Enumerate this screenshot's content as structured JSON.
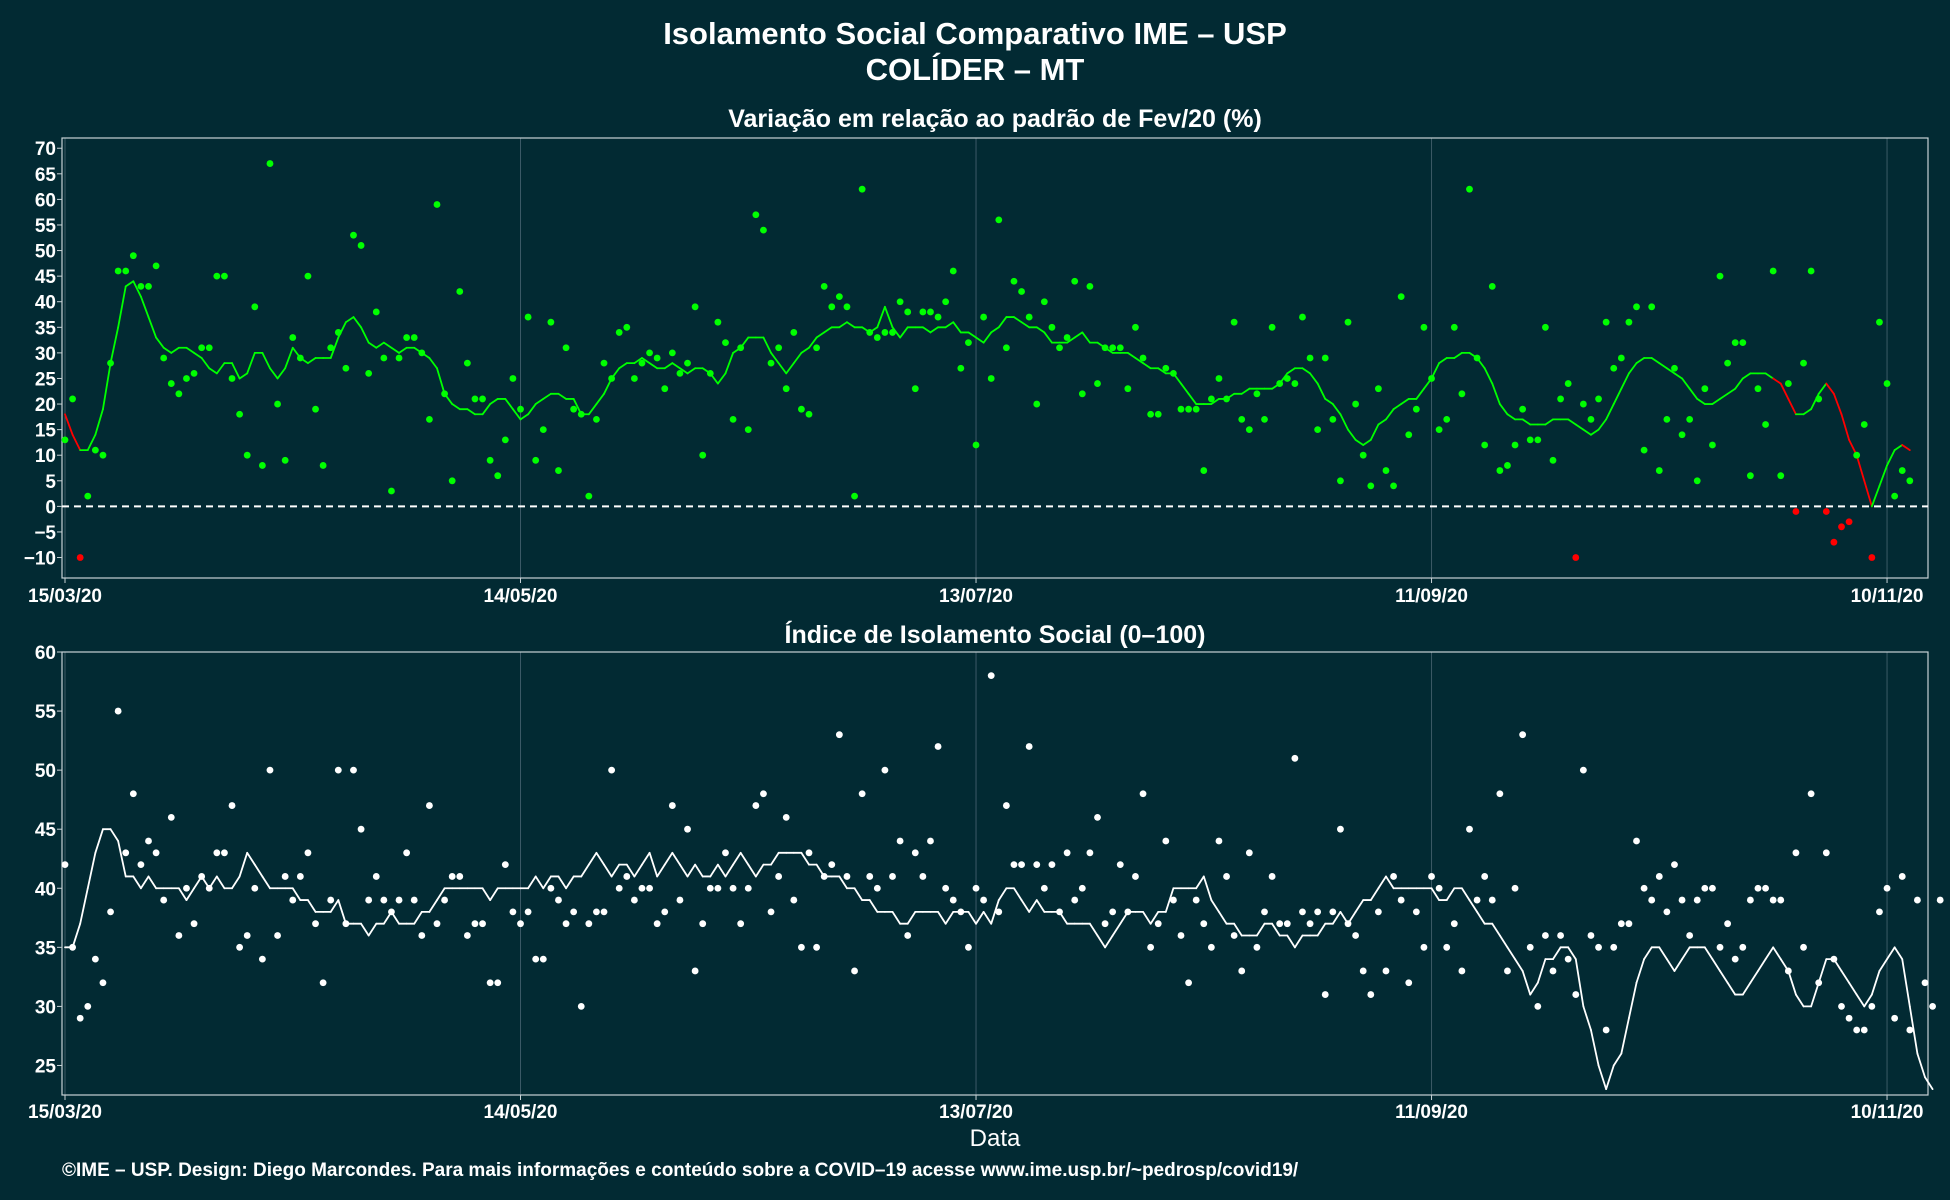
{
  "title": "Isolamento Social Comparativo IME – USP",
  "subtitle": "COLÍDER – MT",
  "footer": "©IME – USP. Design: Diego Marcondes. Para mais informações e conteúdo sobre a COVID–19 acesse www.ime.usp.br/~pedrosp/covid19/",
  "colors": {
    "background": "#022a33",
    "positive": "#00ff00",
    "negative": "#ff0000",
    "index": "#ffffff",
    "grid": "#3c5a66",
    "axis": "#c8d2d6",
    "zero_line": "#ffffff"
  },
  "chart_data": [
    {
      "type": "scatter",
      "title": "Variação em relação ao padrão de Fev/20 (%)",
      "xlabel": "",
      "ylabel": "",
      "x_start": "15/03/20",
      "x_end": "15/11/20",
      "x_ticks": [
        "15/03/20",
        "14/05/20",
        "13/07/20",
        "11/09/20",
        "10/11/20"
      ],
      "y_ticks": [
        -10,
        -5,
        0,
        5,
        10,
        15,
        20,
        25,
        30,
        35,
        40,
        45,
        50,
        55,
        60,
        65,
        70
      ],
      "ylim": [
        -14,
        72
      ],
      "grid": true,
      "reference_line": 0,
      "series": [
        {
          "kind": "points",
          "values": [
            13,
            21,
            -10,
            2,
            11,
            10,
            28,
            46,
            46,
            49,
            43,
            43,
            47,
            29,
            24,
            22,
            25,
            26,
            31,
            31,
            45,
            45,
            25,
            18,
            10,
            39,
            8,
            67,
            20,
            9,
            33,
            29,
            45,
            19,
            8,
            31,
            34,
            27,
            53,
            51,
            26,
            38,
            29,
            3,
            29,
            33,
            33,
            30,
            17,
            59,
            22,
            5,
            42,
            28,
            21,
            21,
            9,
            6,
            13,
            25,
            19,
            37,
            9,
            15,
            36,
            7,
            31,
            19,
            18,
            2,
            17,
            28,
            25,
            34,
            35,
            25,
            28,
            30,
            29,
            23,
            30,
            26,
            28,
            39,
            10,
            26,
            36,
            32,
            17,
            31,
            15,
            57,
            54,
            28,
            31,
            23,
            34,
            19,
            18,
            31,
            43,
            39,
            41,
            39,
            2,
            62,
            34,
            33,
            34,
            34,
            40,
            38,
            23,
            38,
            38,
            37,
            40,
            46,
            27,
            32,
            12,
            37,
            25,
            56,
            31,
            44,
            42,
            37,
            20,
            40,
            35,
            31,
            33,
            44,
            22,
            43,
            24,
            31,
            31,
            31,
            23,
            35,
            29,
            18,
            18,
            27,
            26,
            19,
            19,
            19,
            7,
            21,
            25,
            21,
            36,
            17,
            15,
            22,
            17,
            35,
            24,
            25,
            24,
            37,
            29,
            15,
            29,
            17,
            5,
            36,
            20,
            10,
            4,
            23,
            7,
            4,
            41,
            14,
            19,
            35,
            25,
            15,
            17,
            35,
            22,
            62,
            29,
            12,
            43,
            7,
            8,
            12,
            19,
            13,
            13,
            35,
            9,
            21,
            24,
            -10,
            20,
            17,
            21,
            36,
            27,
            29,
            36,
            39,
            11,
            39,
            7,
            17,
            27,
            14,
            17,
            5,
            23,
            12,
            45,
            28,
            32,
            32,
            6,
            23,
            16,
            46,
            6,
            24,
            -1,
            28,
            46,
            21,
            -1,
            -7,
            -4,
            -3,
            10,
            16,
            -10,
            36,
            24,
            2,
            7,
            5
          ]
        },
        {
          "kind": "moving_average",
          "values": [
            18,
            14,
            11,
            11,
            14,
            19,
            28,
            35,
            43,
            44,
            41,
            37,
            33,
            31,
            30,
            31,
            31,
            30,
            29,
            27,
            26,
            28,
            28,
            25,
            26,
            30,
            30,
            27,
            25,
            27,
            31,
            29,
            28,
            29,
            29,
            29,
            33,
            36,
            37,
            35,
            32,
            31,
            32,
            31,
            30,
            31,
            31,
            30,
            29,
            27,
            22,
            20,
            19,
            19,
            18,
            18,
            20,
            21,
            21,
            19,
            17,
            18,
            20,
            21,
            22,
            22,
            21,
            21,
            18,
            18,
            20,
            22,
            25,
            27,
            28,
            28,
            29,
            28,
            27,
            27,
            28,
            27,
            26,
            27,
            27,
            26,
            24,
            26,
            30,
            31,
            33,
            33,
            33,
            30,
            28,
            26,
            28,
            30,
            31,
            33,
            34,
            35,
            35,
            36,
            35,
            35,
            34,
            35,
            39,
            35,
            33,
            35,
            35,
            35,
            34,
            35,
            35,
            36,
            34,
            34,
            33,
            32,
            34,
            35,
            37,
            37,
            36,
            35,
            35,
            34,
            32,
            32,
            32,
            33,
            34,
            32,
            32,
            31,
            30,
            30,
            30,
            29,
            28,
            27,
            27,
            26,
            26,
            24,
            22,
            20,
            20,
            20,
            21,
            21,
            22,
            22,
            23,
            23,
            23,
            23,
            24,
            26,
            27,
            27,
            26,
            24,
            21,
            20,
            18,
            15,
            13,
            12,
            13,
            16,
            17,
            19,
            20,
            21,
            21,
            23,
            25,
            28,
            29,
            29,
            30,
            30,
            29,
            27,
            24,
            20,
            18,
            17,
            17,
            16,
            16,
            16,
            17,
            17,
            17,
            16,
            15,
            14,
            15,
            17,
            20,
            23,
            26,
            28,
            29,
            29,
            28,
            27,
            26,
            25,
            23,
            21,
            20,
            20,
            21,
            22,
            23,
            25,
            26,
            26,
            26,
            25,
            24,
            21,
            18,
            18,
            19,
            22,
            24,
            22,
            18,
            13,
            10,
            5,
            0,
            4,
            8,
            11,
            12,
            11
          ]
        }
      ]
    },
    {
      "type": "scatter",
      "title": "Índice de Isolamento Social (0–100)",
      "xlabel": "Data",
      "ylabel": "",
      "x_start": "15/03/20",
      "x_end": "15/11/20",
      "x_ticks": [
        "15/03/20",
        "14/05/20",
        "13/07/20",
        "11/09/20",
        "10/11/20"
      ],
      "y_ticks": [
        25,
        30,
        35,
        40,
        45,
        50,
        55,
        60
      ],
      "ylim": [
        22.5,
        60
      ],
      "grid": true,
      "series": [
        {
          "kind": "points",
          "values": [
            42,
            35,
            29,
            30,
            34,
            32,
            38,
            55,
            43,
            48,
            42,
            44,
            43,
            39,
            46,
            36,
            40,
            37,
            41,
            40,
            43,
            43,
            47,
            35,
            36,
            40,
            34,
            50,
            36,
            41,
            39,
            41,
            43,
            37,
            32,
            39,
            50,
            37,
            50,
            45,
            39,
            41,
            39,
            38,
            39,
            43,
            39,
            36,
            47,
            37,
            39,
            41,
            41,
            36,
            37,
            37,
            32,
            32,
            42,
            38,
            37,
            38,
            34,
            34,
            40,
            39,
            37,
            38,
            30,
            37,
            38,
            38,
            50,
            40,
            41,
            39,
            40,
            40,
            37,
            38,
            47,
            39,
            45,
            33,
            37,
            40,
            40,
            43,
            40,
            37,
            40,
            47,
            48,
            38,
            41,
            46,
            39,
            35,
            43,
            35,
            41,
            42,
            53,
            41,
            33,
            48,
            41,
            40,
            50,
            41,
            44,
            36,
            43,
            41,
            44,
            52,
            40,
            39,
            38,
            35,
            40,
            39,
            58,
            38,
            47,
            42,
            42,
            52,
            42,
            40,
            42,
            38,
            43,
            39,
            40,
            43,
            46,
            37,
            38,
            42,
            38,
            41,
            48,
            35,
            37,
            44,
            39,
            36,
            32,
            39,
            37,
            35,
            44,
            41,
            36,
            33,
            43,
            35,
            38,
            41,
            37,
            37,
            51,
            38,
            37,
            38,
            31,
            38,
            45,
            37,
            36,
            33,
            31,
            38,
            33,
            41,
            39,
            32,
            38,
            35,
            41,
            40,
            35,
            37,
            33,
            45,
            39,
            41,
            39,
            48,
            33,
            40,
            53,
            35,
            30,
            36,
            33,
            36,
            34,
            31,
            50,
            36,
            35,
            28,
            35,
            37,
            37,
            44,
            40,
            39,
            41,
            38,
            42,
            39,
            36,
            39,
            40,
            40,
            35,
            37,
            34,
            35,
            39,
            40,
            40,
            39,
            39,
            33,
            43,
            35,
            48,
            32,
            43,
            34,
            30,
            29,
            28,
            28,
            30,
            38,
            40,
            29,
            41,
            28,
            39,
            32,
            30,
            39
          ]
        },
        {
          "kind": "moving_average",
          "values": [
            35,
            35,
            37,
            40,
            43,
            45,
            45,
            44,
            41,
            41,
            40,
            41,
            40,
            40,
            40,
            40,
            39,
            40,
            41,
            40,
            41,
            40,
            40,
            41,
            43,
            42,
            41,
            40,
            40,
            40,
            40,
            39,
            39,
            38,
            38,
            38,
            39,
            37,
            37,
            37,
            36,
            37,
            37,
            38,
            37,
            37,
            37,
            38,
            38,
            39,
            40,
            40,
            40,
            40,
            40,
            40,
            39,
            40,
            40,
            40,
            40,
            40,
            41,
            40,
            41,
            41,
            40,
            41,
            41,
            42,
            43,
            42,
            41,
            42,
            42,
            41,
            42,
            43,
            41,
            42,
            43,
            42,
            41,
            42,
            41,
            41,
            42,
            41,
            42,
            43,
            42,
            41,
            42,
            42,
            43,
            43,
            43,
            43,
            42,
            42,
            41,
            41,
            41,
            40,
            40,
            39,
            39,
            38,
            38,
            38,
            37,
            37,
            38,
            38,
            38,
            38,
            37,
            38,
            38,
            38,
            37,
            38,
            37,
            39,
            40,
            40,
            39,
            38,
            39,
            38,
            38,
            38,
            37,
            37,
            37,
            37,
            36,
            35,
            36,
            37,
            38,
            38,
            38,
            37,
            38,
            38,
            40,
            40,
            40,
            40,
            41,
            39,
            38,
            37,
            37,
            36,
            36,
            36,
            37,
            37,
            36,
            36,
            35,
            36,
            36,
            36,
            37,
            37,
            38,
            37,
            38,
            39,
            39,
            40,
            41,
            40,
            40,
            40,
            40,
            40,
            40,
            39,
            39,
            40,
            40,
            39,
            38,
            37,
            37,
            36,
            35,
            34,
            33,
            31,
            32,
            34,
            34,
            35,
            35,
            34,
            30,
            28,
            25,
            23,
            25,
            26,
            29,
            32,
            34,
            35,
            35,
            34,
            33,
            34,
            35,
            35,
            35,
            34,
            33,
            32,
            31,
            31,
            32,
            33,
            34,
            35,
            34,
            33,
            31,
            30,
            30,
            32,
            34,
            34,
            33,
            32,
            31,
            30,
            31,
            33,
            34,
            35,
            34,
            30,
            26,
            24,
            23
          ]
        }
      ]
    }
  ]
}
